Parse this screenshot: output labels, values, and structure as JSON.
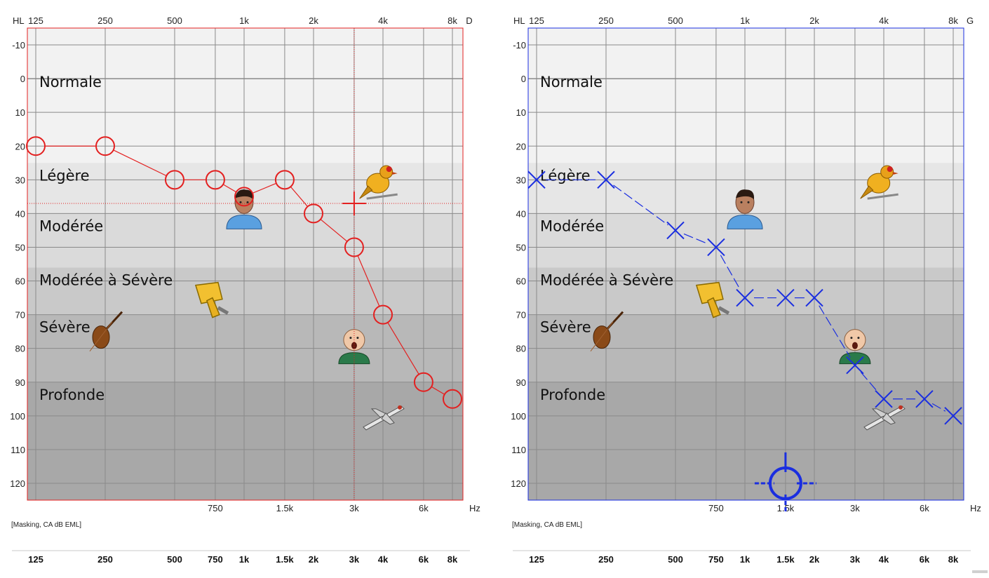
{
  "chart_data": [
    {
      "type": "line",
      "ear_label": "D",
      "y_unit_label": "HL",
      "x_unit_label": "Hz",
      "note": "[Masking, CA dB EML]",
      "x_scale": "log",
      "y_inverted": true,
      "ylim": [
        -15,
        125
      ],
      "xlim": [
        125,
        8000
      ],
      "grid": true,
      "top_ticks": [
        "125",
        "250",
        "500",
        "1k",
        "2k",
        "4k",
        "8k"
      ],
      "top_tick_values": [
        125,
        250,
        500,
        1000,
        2000,
        4000,
        8000
      ],
      "bottom_ticks": [
        "750",
        "1.5k",
        "3k",
        "6k"
      ],
      "bottom_tick_values": [
        750,
        1500,
        3000,
        6000
      ],
      "y_ticks": [
        -10,
        0,
        10,
        20,
        30,
        40,
        50,
        60,
        70,
        80,
        90,
        100,
        110,
        120
      ],
      "bands": [
        {
          "label": "Normale",
          "from": -15,
          "to": 25,
          "color": "#f2f2f2"
        },
        {
          "label": "Légère",
          "from": 25,
          "to": 40,
          "color": "#e6e6e6"
        },
        {
          "label": "Modérée",
          "from": 40,
          "to": 56,
          "color": "#dadada"
        },
        {
          "label": "Modérée à Sévère",
          "from": 56,
          "to": 70,
          "color": "#c9c9c9"
        },
        {
          "label": "Sévère",
          "from": 70,
          "to": 90,
          "color": "#b8b8b8"
        },
        {
          "label": "Profonde",
          "from": 90,
          "to": 125,
          "color": "#a8a8a8"
        }
      ],
      "series": [
        {
          "marker": "circle",
          "color": "#e32020",
          "x": [
            125,
            250,
            500,
            750,
            1000,
            1500,
            2000,
            3000,
            4000,
            6000,
            8000
          ],
          "y": [
            20,
            20,
            30,
            30,
            35,
            30,
            40,
            50,
            70,
            90,
            95
          ]
        }
      ],
      "cursor": {
        "x": 3000,
        "y": 37,
        "color": "#e32020"
      },
      "plot_border_color": "#e32020"
    },
    {
      "type": "line",
      "ear_label": "G",
      "y_unit_label": "HL",
      "x_unit_label": "Hz",
      "note": "[Masking, CA dB EML]",
      "x_scale": "log",
      "y_inverted": true,
      "ylim": [
        -15,
        125
      ],
      "xlim": [
        125,
        8000
      ],
      "grid": true,
      "top_ticks": [
        "125",
        "250",
        "500",
        "1k",
        "2k",
        "4k",
        "8k"
      ],
      "top_tick_values": [
        125,
        250,
        500,
        1000,
        2000,
        4000,
        8000
      ],
      "bottom_ticks": [
        "750",
        "1.5k",
        "3k",
        "6k"
      ],
      "bottom_tick_values": [
        750,
        1500,
        3000,
        6000
      ],
      "y_ticks": [
        -10,
        0,
        10,
        20,
        30,
        40,
        50,
        60,
        70,
        80,
        90,
        100,
        110,
        120
      ],
      "bands": [
        {
          "label": "Normale",
          "from": -15,
          "to": 25,
          "color": "#f2f2f2"
        },
        {
          "label": "Légère",
          "from": 25,
          "to": 40,
          "color": "#e6e6e6"
        },
        {
          "label": "Modérée",
          "from": 40,
          "to": 56,
          "color": "#dadada"
        },
        {
          "label": "Modérée à Sévère",
          "from": 56,
          "to": 70,
          "color": "#c9c9c9"
        },
        {
          "label": "Sévère",
          "from": 70,
          "to": 90,
          "color": "#b8b8b8"
        },
        {
          "label": "Profonde",
          "from": 90,
          "to": 125,
          "color": "#a8a8a8"
        }
      ],
      "series": [
        {
          "marker": "cross",
          "color": "#1a2ee0",
          "x": [
            125,
            250,
            500,
            750,
            1000,
            1500,
            2000,
            3000,
            4000,
            6000,
            8000
          ],
          "y": [
            30,
            30,
            45,
            50,
            65,
            65,
            65,
            85,
            95,
            95,
            100
          ]
        }
      ],
      "cursor": {
        "x": 1500,
        "y": 120,
        "color": "#1a2ee0"
      },
      "plot_border_color": "#1a2ee0"
    }
  ],
  "bottom_scale": {
    "labels": [
      "125",
      "250",
      "500",
      "750",
      "1k",
      "1.5k",
      "2k",
      "3k",
      "4k",
      "6k",
      "8k"
    ],
    "values": [
      125,
      250,
      500,
      750,
      1000,
      1500,
      2000,
      3000,
      4000,
      6000,
      8000
    ]
  },
  "icons": [
    {
      "name": "bird-icon",
      "x": 3800,
      "y": 31
    },
    {
      "name": "person-icon",
      "x": 1000,
      "y": 40
    },
    {
      "name": "hair-dryer-icon",
      "x": 750,
      "y": 65
    },
    {
      "name": "violin-icon",
      "x": 250,
      "y": 75
    },
    {
      "name": "crying-baby-icon",
      "x": 3000,
      "y": 80
    },
    {
      "name": "airplane-icon",
      "x": 4000,
      "y": 100
    }
  ]
}
